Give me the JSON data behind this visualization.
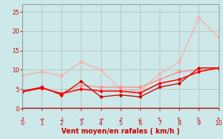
{
  "background_color": "#cce8e8",
  "xlabel": "Vent moyen/en rafales ( km/h )",
  "xlim": [
    0,
    10
  ],
  "ylim": [
    0,
    27
  ],
  "yticks": [
    0,
    5,
    10,
    15,
    20,
    25
  ],
  "xticks": [
    0,
    1,
    2,
    3,
    4,
    5,
    6,
    7,
    8,
    9,
    10
  ],
  "series": [
    {
      "x": [
        0,
        1,
        2,
        3,
        4,
        5,
        6,
        7,
        8,
        9,
        10
      ],
      "y": [
        8.5,
        9.5,
        8.5,
        12.0,
        10.0,
        5.0,
        4.5,
        9.0,
        12.0,
        23.5,
        18.5
      ],
      "color": "#ffaaaa",
      "marker": "D",
      "linewidth": 1.0,
      "markersize": 2.5,
      "linestyle": "-"
    },
    {
      "x": [
        0,
        1,
        2,
        3,
        4,
        5,
        6,
        7,
        8,
        9,
        10
      ],
      "y": [
        4.5,
        5.2,
        4.0,
        6.0,
        5.5,
        5.5,
        5.5,
        7.5,
        9.5,
        10.0,
        10.5
      ],
      "color": "#ff8888",
      "marker": "D",
      "linewidth": 1.0,
      "markersize": 2.5,
      "linestyle": "-"
    },
    {
      "x": [
        0,
        1,
        2,
        3,
        4,
        5,
        6,
        7,
        8,
        9,
        10
      ],
      "y": [
        4.5,
        5.5,
        3.5,
        7.0,
        3.0,
        3.5,
        3.0,
        5.5,
        6.5,
        10.5,
        10.5
      ],
      "color": "#cc0000",
      "marker": "D",
      "linewidth": 1.0,
      "markersize": 2.5,
      "linestyle": "-"
    },
    {
      "x": [
        0,
        1,
        2,
        3,
        4,
        5,
        6,
        7,
        8,
        9,
        10
      ],
      "y": [
        4.3,
        5.3,
        3.8,
        5.0,
        4.5,
        4.5,
        4.0,
        6.5,
        7.5,
        9.5,
        10.5
      ],
      "color": "#ff0000",
      "marker": "D",
      "linewidth": 1.2,
      "markersize": 2.5,
      "linestyle": "-"
    }
  ],
  "wind_arrows_x": [
    0,
    1,
    2,
    3,
    4,
    5,
    6,
    7,
    8,
    9,
    10
  ],
  "wind_arrows_sym": [
    "↗",
    "→",
    "↓",
    "→",
    "→",
    "↗",
    "↙",
    "↖",
    "↖",
    "↖",
    "↖"
  ],
  "arrow_color": "#cc0000",
  "xlabel_color": "#cc0000",
  "xlabel_fontsize": 7,
  "tick_color": "#cc0000",
  "tick_fontsize": 6,
  "arrow_fontsize": 5.5,
  "grid_color": "#aaaaaa",
  "axis_color": "#888888",
  "bottom_line_color": "#cc0000"
}
